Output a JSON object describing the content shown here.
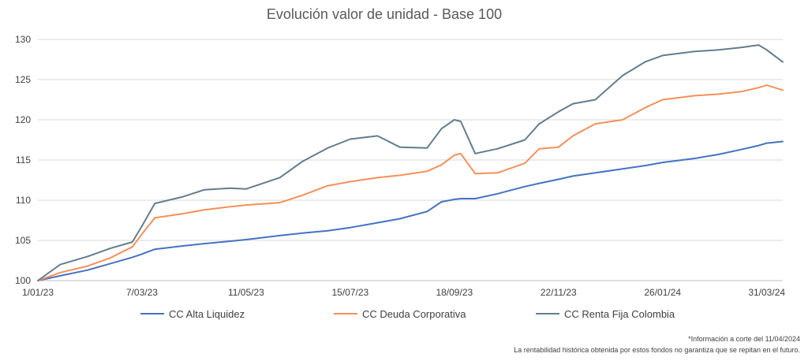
{
  "chart_data": {
    "type": "line",
    "title": "Evolución valor de unidad - Base 100",
    "xlabel": "",
    "ylabel": "",
    "ylim": [
      100,
      130
    ],
    "yticks": [
      100,
      105,
      110,
      115,
      120,
      125,
      130
    ],
    "xticks": [
      "1/01/23",
      "7/03/23",
      "11/05/23",
      "15/07/23",
      "18/09/23",
      "22/11/23",
      "26/01/24",
      "31/03/24"
    ],
    "grid": "horizontal",
    "legend_position": "bottom",
    "x": [
      "1/01/23",
      "15/01/23",
      "1/02/23",
      "15/02/23",
      "1/03/23",
      "7/03/23",
      "15/03/23",
      "1/04/23",
      "15/04/23",
      "1/05/23",
      "11/05/23",
      "1/06/23",
      "15/06/23",
      "1/07/23",
      "15/07/23",
      "1/08/23",
      "15/08/23",
      "1/09/23",
      "10/09/23",
      "18/09/23",
      "22/09/23",
      "1/10/23",
      "15/10/23",
      "1/11/23",
      "10/11/23",
      "22/11/23",
      "1/12/23",
      "15/12/23",
      "1/01/24",
      "15/01/24",
      "26/01/24",
      "15/02/24",
      "1/03/24",
      "15/03/24",
      "26/03/24",
      "31/03/24",
      "10/04/24"
    ],
    "series": [
      {
        "name": "CC Alta Liquidez",
        "color": "#4472c4",
        "values": [
          100,
          100.6,
          101.3,
          102.1,
          102.9,
          103.3,
          103.9,
          104.3,
          104.6,
          104.9,
          105.1,
          105.6,
          105.9,
          106.2,
          106.6,
          107.2,
          107.7,
          108.6,
          109.8,
          110.1,
          110.2,
          110.2,
          110.8,
          111.7,
          112.1,
          112.6,
          113.0,
          113.4,
          113.9,
          114.3,
          114.7,
          115.2,
          115.7,
          116.3,
          116.8,
          117.1,
          117.3
        ]
      },
      {
        "name": "CC Deuda Corporativa",
        "color": "#f4905a",
        "values": [
          100,
          101.0,
          101.8,
          102.8,
          104.2,
          105.8,
          107.8,
          108.3,
          108.8,
          109.2,
          109.4,
          109.7,
          110.6,
          111.8,
          112.3,
          112.8,
          113.1,
          113.6,
          114.4,
          115.6,
          115.8,
          113.3,
          113.4,
          114.6,
          116.4,
          116.6,
          118.0,
          119.5,
          120.0,
          121.5,
          122.5,
          123.0,
          123.2,
          123.5,
          124.0,
          124.3,
          123.7
        ]
      },
      {
        "name": "CC Renta Fija Colombia",
        "color": "#637d8e",
        "values": [
          100,
          102.0,
          103.0,
          104.0,
          104.8,
          106.8,
          109.6,
          110.4,
          111.3,
          111.5,
          111.4,
          112.8,
          114.8,
          116.5,
          117.6,
          118.0,
          116.6,
          116.5,
          118.9,
          120.0,
          119.8,
          115.8,
          116.4,
          117.5,
          119.5,
          121.0,
          122.0,
          122.5,
          125.5,
          127.2,
          128.0,
          128.5,
          128.7,
          129.0,
          129.3,
          128.7,
          127.2
        ]
      }
    ]
  },
  "footnotes": {
    "line1": "*Información a corte del 11/04/2024",
    "line2": "La rentabilidad histórica obtenida por estos fondos no garantiza que se repitan en el futuro."
  }
}
